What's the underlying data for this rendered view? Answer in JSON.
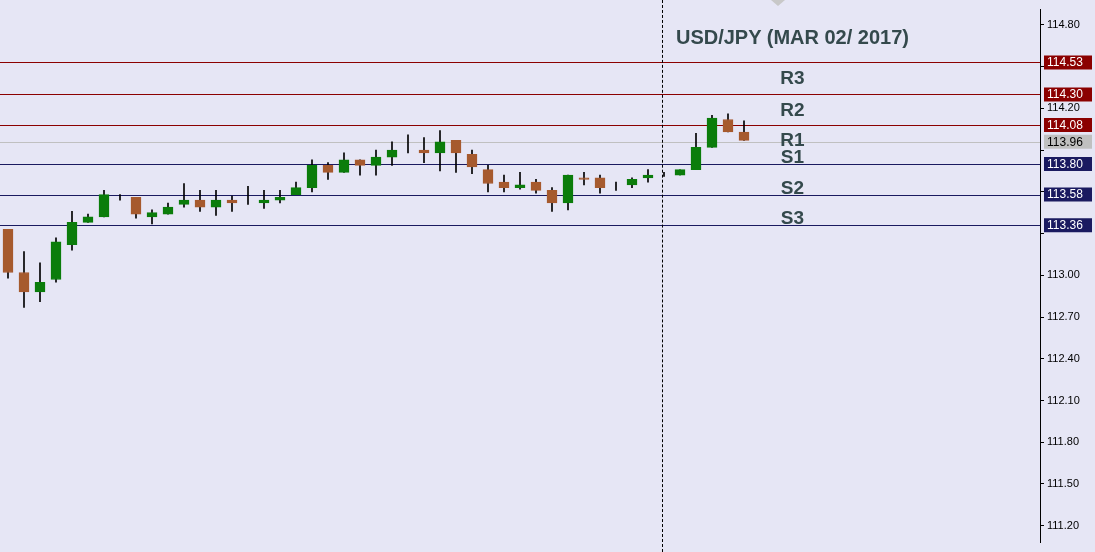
{
  "chart_data": {
    "type": "candlestick",
    "title": "USD/JPY (MAR 02/ 2017)",
    "categories": [
      null,
      null,
      null,
      null,
      null,
      null,
      null,
      null,
      null,
      null,
      null,
      null,
      null,
      null,
      null,
      null,
      null,
      null,
      null,
      null,
      null,
      null,
      null,
      null,
      null,
      null,
      null,
      null,
      null,
      null,
      null,
      null,
      null,
      null,
      null,
      null,
      null,
      null,
      null,
      null,
      null,
      null,
      null,
      null,
      null,
      null,
      null,
      null,
      null,
      null,
      null,
      null,
      null,
      null,
      null,
      null,
      null,
      null,
      null,
      null,
      null,
      null,
      null,
      null,
      null
    ],
    "ohlc": [
      [
        113.33,
        113.33,
        112.98,
        113.02
      ],
      [
        113.02,
        113.17,
        112.77,
        112.88
      ],
      [
        112.88,
        113.09,
        112.81,
        112.95
      ],
      [
        112.97,
        113.27,
        112.95,
        113.24
      ],
      [
        113.22,
        113.46,
        113.18,
        113.38
      ],
      [
        113.38,
        113.44,
        113.38,
        113.42
      ],
      [
        113.42,
        113.61,
        113.42,
        113.58
      ],
      [
        113.56,
        113.58,
        113.54,
        113.56
      ],
      [
        113.56,
        113.56,
        113.41,
        113.44
      ],
      [
        113.42,
        113.47,
        113.37,
        113.45
      ],
      [
        113.44,
        113.52,
        113.44,
        113.49
      ],
      [
        113.51,
        113.66,
        113.49,
        113.54
      ],
      [
        113.54,
        113.61,
        113.46,
        113.49
      ],
      [
        113.49,
        113.61,
        113.43,
        113.54
      ],
      [
        113.54,
        113.57,
        113.46,
        113.52
      ],
      [
        113.52,
        113.64,
        113.51,
        113.52
      ],
      [
        113.52,
        113.61,
        113.48,
        113.54
      ],
      [
        113.54,
        113.61,
        113.52,
        113.56
      ],
      [
        113.58,
        113.67,
        113.58,
        113.63
      ],
      [
        113.63,
        113.83,
        113.6,
        113.79
      ],
      [
        113.79,
        113.81,
        113.69,
        113.74
      ],
      [
        113.74,
        113.88,
        113.74,
        113.83
      ],
      [
        113.83,
        113.83,
        113.72,
        113.79
      ],
      [
        113.79,
        113.9,
        113.72,
        113.85
      ],
      [
        113.85,
        113.96,
        113.79,
        113.9
      ],
      [
        113.9,
        114.01,
        113.88,
        113.9
      ],
      [
        113.9,
        113.99,
        113.81,
        113.88
      ],
      [
        113.88,
        114.04,
        113.75,
        113.96
      ],
      [
        113.97,
        113.97,
        113.74,
        113.88
      ],
      [
        113.87,
        113.9,
        113.73,
        113.78
      ],
      [
        113.76,
        113.79,
        113.6,
        113.66
      ],
      [
        113.67,
        113.72,
        113.6,
        113.63
      ],
      [
        113.63,
        113.74,
        113.62,
        113.65
      ],
      [
        113.67,
        113.69,
        113.59,
        113.61
      ],
      [
        113.61,
        113.63,
        113.46,
        113.52
      ],
      [
        113.52,
        113.72,
        113.47,
        113.72
      ],
      [
        113.7,
        113.74,
        113.65,
        113.69
      ],
      [
        113.7,
        113.72,
        113.59,
        113.63
      ],
      [
        113.63,
        113.67,
        113.61,
        113.63
      ],
      [
        113.65,
        113.7,
        113.63,
        113.69
      ],
      [
        113.7,
        113.76,
        113.67,
        113.72
      ],
      [
        113.72,
        113.74,
        113.71,
        113.72
      ],
      [
        113.72,
        113.76,
        113.72,
        113.76
      ],
      [
        113.76,
        114.02,
        113.76,
        113.92
      ],
      [
        113.92,
        114.15,
        113.92,
        114.13
      ],
      [
        114.12,
        114.16,
        114.03,
        114.03
      ],
      [
        114.03,
        114.11,
        113.97,
        113.97
      ],
      null,
      null,
      null,
      null,
      null,
      null,
      null,
      null,
      null,
      null,
      null,
      null,
      null,
      null,
      null,
      null,
      null,
      null
    ],
    "colors": [
      "#a65a2e",
      "#a65a2e",
      "#0b7d0b",
      "#0b7d0b",
      "#0b7d0b",
      "#0b7d0b",
      "#0b7d0b",
      "#0b7d0b",
      "#a65a2e",
      "#0b7d0b",
      "#0b7d0b",
      "#0b7d0b",
      "#a65a2e",
      "#0b7d0b",
      "#a65a2e",
      "#0b7d0b",
      "#0b7d0b",
      "#0b7d0b",
      "#0b7d0b",
      "#0b7d0b",
      "#a65a2e",
      "#0b7d0b",
      "#a65a2e",
      "#0b7d0b",
      "#0b7d0b",
      "#0b7d0b",
      "#a65a2e",
      "#0b7d0b",
      "#a65a2e",
      "#a65a2e",
      "#a65a2e",
      "#a65a2e",
      "#0b7d0b",
      "#a65a2e",
      "#a65a2e",
      "#0b7d0b",
      "#a65a2e",
      "#a65a2e",
      "#0b7d0b",
      "#0b7d0b",
      "#0b7d0b",
      "#0b7d0b",
      "#0b7d0b",
      "#0b7d0b",
      "#0b7d0b",
      "#a65a2e",
      "#a65a2e",
      null,
      null,
      null,
      null,
      null,
      null,
      null,
      null,
      null,
      null,
      null,
      null,
      null,
      null,
      null,
      null,
      null,
      null
    ],
    "ylim": [
      111.08,
      114.91
    ],
    "yticks": [
      {
        "value": 114.8,
        "label": "114.80"
      },
      {
        "value": 114.5,
        "label": null
      },
      {
        "value": 114.2,
        "label": "114.20"
      },
      {
        "value": 113.9,
        "label": null
      },
      {
        "value": 113.6,
        "label": null
      },
      {
        "value": 113.3,
        "label": null
      },
      {
        "value": 113.0,
        "label": "113.00"
      },
      {
        "value": 112.7,
        "label": "112.70"
      },
      {
        "value": 112.4,
        "label": "112.40"
      },
      {
        "value": 112.1,
        "label": "112.10"
      },
      {
        "value": 111.8,
        "label": "111.80"
      },
      {
        "value": 111.5,
        "label": "111.50"
      },
      {
        "value": 111.2,
        "label": "111.20"
      }
    ],
    "tick_labels": "y",
    "grid": false,
    "legend": false,
    "ref_lines": [
      {
        "axis": "y",
        "value": 114.53,
        "label": "R3",
        "color": "#8b0000"
      },
      {
        "axis": "y",
        "value": 114.3,
        "label": "R2",
        "color": "#8b0000"
      },
      {
        "axis": "y",
        "value": 114.08,
        "label": "R1",
        "color": "#8b0000"
      },
      {
        "axis": "y",
        "value": 113.96,
        "label": null,
        "color": "#c0c0c0"
      },
      {
        "axis": "y",
        "value": 113.8,
        "label": "S1",
        "color": "#1a1a60"
      },
      {
        "axis": "y",
        "value": 113.58,
        "label": "S2",
        "color": "#1a1a60"
      },
      {
        "axis": "y",
        "value": 113.36,
        "label": "S3",
        "color": "#1a1a60"
      }
    ],
    "annotations": [
      "114.53",
      "114.30",
      "114.08",
      "113.96",
      "113.80",
      "113.58",
      "113.36"
    ]
  }
}
